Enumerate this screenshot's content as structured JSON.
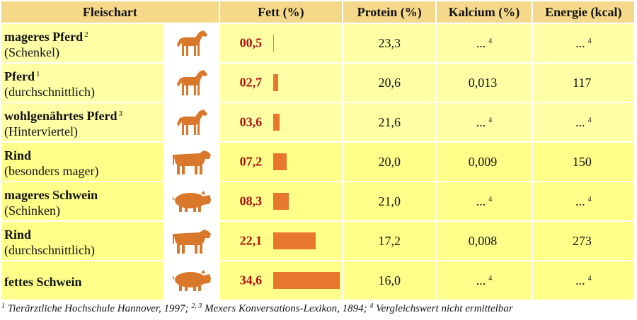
{
  "colors": {
    "header": "#f5d98a",
    "row_horse": "#ffffa6",
    "row_other": "#ffff8a",
    "bar": "#e8772e",
    "fat_text": "#b01010",
    "icon": "#d9772a"
  },
  "headers": {
    "fleischart": "Fleischart",
    "fett": "Fett (%)",
    "protein": "Protein (%)",
    "kalcium": "Kalcium (%)",
    "energie": "Energie (kcal)"
  },
  "rows": [
    {
      "name": "mageres Pferd",
      "sup": "2",
      "sub": "(Schenkel)",
      "icon": "horse-icon",
      "fett": "00,5",
      "fett_value": 0.5,
      "protein": "23,3",
      "kalcium": "...",
      "kalcium_sup": "4",
      "energie": "...",
      "energie_sup": "4"
    },
    {
      "name": "Pferd",
      "sup": "1",
      "sub": "(durchschnittlich)",
      "icon": "horse-icon",
      "fett": "02,7",
      "fett_value": 2.7,
      "protein": "20,6",
      "kalcium": "0,013",
      "kalcium_sup": "",
      "energie": "117",
      "energie_sup": ""
    },
    {
      "name": "wohlgenährtes Pferd",
      "sup": "3",
      "sub": "(Hinterviertel)",
      "icon": "horse-icon",
      "fett": "03,6",
      "fett_value": 3.6,
      "protein": "21,6",
      "kalcium": "...",
      "kalcium_sup": "4",
      "energie": "...",
      "energie_sup": "4"
    },
    {
      "name": "Rind",
      "sup": "",
      "sub": "(besonders mager)",
      "icon": "cow-icon",
      "fett": "07,2",
      "fett_value": 7.2,
      "protein": "20,0",
      "kalcium": "0,009",
      "kalcium_sup": "",
      "energie": "150",
      "energie_sup": ""
    },
    {
      "name": "mageres Schwein",
      "sup": "",
      "sub": "(Schinken)",
      "icon": "pig-icon",
      "fett": "08,3",
      "fett_value": 8.3,
      "protein": "21,0",
      "kalcium": "...",
      "kalcium_sup": "4",
      "energie": "...",
      "energie_sup": "4"
    },
    {
      "name": "Rind",
      "sup": "",
      "sub": "(durchschnittlich)",
      "icon": "cow-icon",
      "fett": "22,1",
      "fett_value": 22.1,
      "protein": "17,2",
      "kalcium": "0,008",
      "kalcium_sup": "",
      "energie": "273",
      "energie_sup": ""
    },
    {
      "name": "fettes Schwein",
      "sup": "",
      "sub": "",
      "icon": "pig-icon",
      "fett": "34,6",
      "fett_value": 34.6,
      "protein": "16,0",
      "kalcium": "...",
      "kalcium_sup": "4",
      "energie": "...",
      "energie_sup": "4"
    }
  ],
  "footnote": {
    "s1": "1",
    "t1": " Tierärztliche Hochschule Hannover, 1997; ",
    "s2": "2, 3",
    "t2": " Mexers Konversations-Lexikon, 1894; ",
    "s3": "4",
    "t3": " Vergleichswert nicht ermittelbar"
  }
}
